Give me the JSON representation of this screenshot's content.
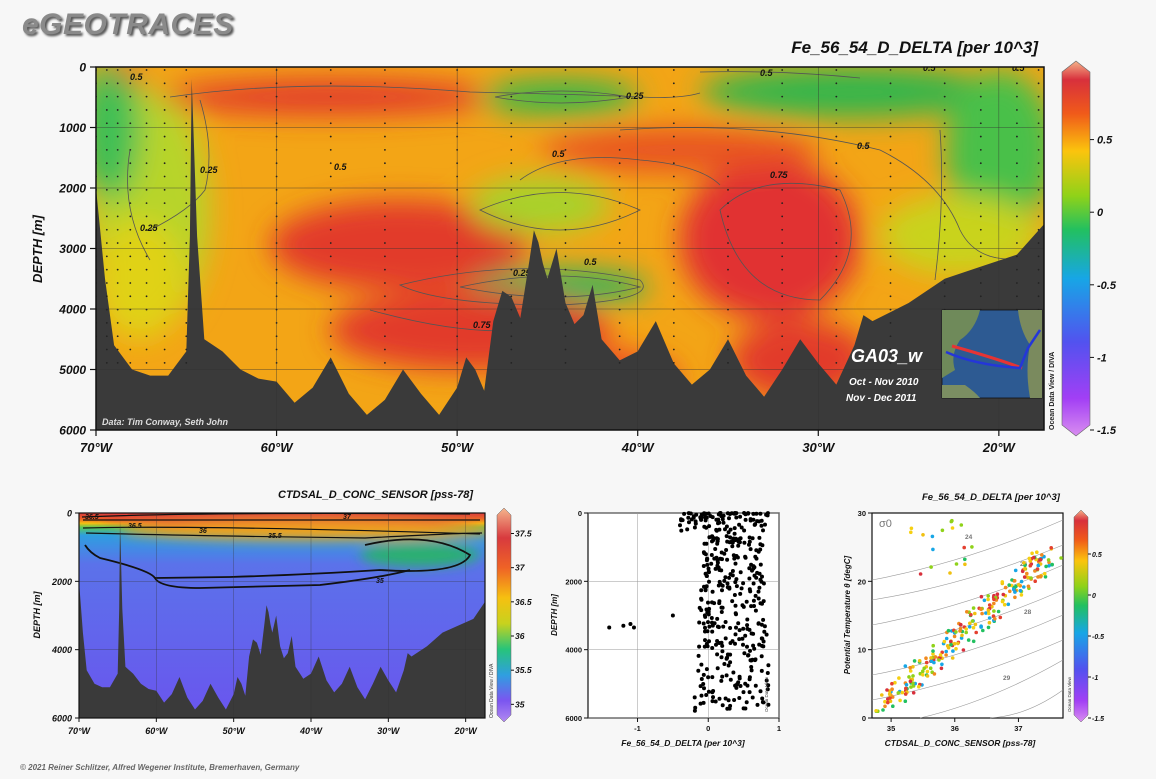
{
  "logo": "eGEOTRACES",
  "footer": "© 2021 Reiner Schlitzer, Alfred Wegener Institute, Bremerhaven, Germany",
  "colors": {
    "background": "#f7f7f7",
    "bathymetry": "#3a3a3a",
    "frame": "#111111"
  },
  "chart_data": [
    {
      "id": "main-section",
      "type": "heatmap",
      "title": "Fe_56_54_D_DELTA [per 10^3]",
      "ylabel": "DEPTH [m]",
      "xlabel": "",
      "x_ticks": [
        "70°W",
        "60°W",
        "50°W",
        "40°W",
        "30°W",
        "20°W"
      ],
      "x_tick_values": [
        -70,
        -60,
        -50,
        -40,
        -30,
        -20
      ],
      "xlim": [
        -70,
        -17.5
      ],
      "y_ticks": [
        "0",
        "1000",
        "2000",
        "3000",
        "4000",
        "5000",
        "6000"
      ],
      "y_tick_values": [
        0,
        1000,
        2000,
        3000,
        4000,
        5000,
        6000
      ],
      "ylim": [
        0,
        6000
      ],
      "colorbar": {
        "ticks": [
          "0.5",
          "0",
          "-0.5",
          "-1",
          "-1.5"
        ],
        "tick_values": [
          0.5,
          0,
          -0.5,
          -1,
          -1.5
        ],
        "range": [
          -1.5,
          1
        ]
      },
      "contour_labels": [
        "0.5",
        "0.25",
        "0.25",
        "0.5",
        "0.25",
        "0.5",
        "0.75",
        "0.5",
        "0.5",
        "0.25",
        "0.75",
        "0.5",
        "0.5"
      ],
      "credit": "Data: Tim Conway, Seth John",
      "cruise": "GA03_w",
      "dates": [
        "Oct - Nov 2010",
        "Nov - Dec 2011"
      ],
      "odv_label": "Ocean Data View / DIVA",
      "bathymetry": [
        [
          -70,
          2000
        ],
        [
          -69.5,
          3500
        ],
        [
          -69,
          4600
        ],
        [
          -68,
          5000
        ],
        [
          -67,
          5100
        ],
        [
          -66,
          5100
        ],
        [
          -65,
          4700
        ],
        [
          -64.8,
          2800
        ],
        [
          -64.7,
          200
        ],
        [
          -64.4,
          2800
        ],
        [
          -64,
          4500
        ],
        [
          -63,
          4700
        ],
        [
          -62,
          5000
        ],
        [
          -61,
          5150
        ],
        [
          -60,
          5200
        ],
        [
          -58,
          5300
        ],
        [
          -56,
          5400
        ],
        [
          -54,
          5500
        ],
        [
          -52,
          5400
        ],
        [
          -50,
          5300
        ],
        [
          -49,
          5000
        ],
        [
          -48,
          4200
        ],
        [
          -47,
          3800
        ],
        [
          -46,
          3200
        ],
        [
          -45.5,
          2900
        ],
        [
          -45,
          3500
        ],
        [
          -44,
          3900
        ],
        [
          -43,
          4100
        ],
        [
          -42,
          4500
        ],
        [
          -40,
          4700
        ],
        [
          -38,
          4900
        ],
        [
          -36,
          5000
        ],
        [
          -34,
          5100
        ],
        [
          -32,
          5000
        ],
        [
          -30,
          4900
        ],
        [
          -28,
          4600
        ],
        [
          -27,
          4200
        ],
        [
          -25,
          3900
        ],
        [
          -23,
          3500
        ],
        [
          -21,
          3300
        ],
        [
          -19,
          3100
        ],
        [
          -17.5,
          2600
        ]
      ],
      "stations_lon": [
        -70,
        -69.4,
        -68.8,
        -68.1,
        -67.2,
        -66.2,
        -65,
        -60,
        -57,
        -54,
        -50,
        -47,
        -44,
        -41,
        -38,
        -35,
        -32,
        -29,
        -26,
        -23,
        -21,
        -19,
        -17.8
      ]
    },
    {
      "id": "salinity-section",
      "type": "heatmap",
      "title": "CTDSAL_D_CONC_SENSOR [pss-78]",
      "ylabel": "DEPTH [m]",
      "x_ticks": [
        "70°W",
        "60°W",
        "50°W",
        "40°W",
        "30°W",
        "20°W"
      ],
      "x_tick_values": [
        -70,
        -60,
        -50,
        -40,
        -30,
        -20
      ],
      "xlim": [
        -70,
        -17.5
      ],
      "y_ticks": [
        "0",
        "2000",
        "4000",
        "6000"
      ],
      "y_tick_values": [
        0,
        2000,
        4000,
        6000
      ],
      "ylim": [
        0,
        6000
      ],
      "colorbar": {
        "ticks": [
          "37.5",
          "37",
          "36.5",
          "36",
          "35.5",
          "35"
        ],
        "tick_values": [
          37.5,
          37,
          36.5,
          36,
          35.5,
          35
        ],
        "range": [
          34.8,
          37.8
        ]
      },
      "contour_labels": [
        "36.5",
        "36.5",
        "36",
        "35.5",
        "37",
        "35"
      ],
      "odv_label": "Ocean Data View / DIVA"
    },
    {
      "id": "depth-scatter",
      "type": "scatter",
      "title": "",
      "xlabel": "Fe_56_54_D_DELTA [per 10^3]",
      "ylabel": "DEPTH [m]",
      "x_ticks": [
        "-1",
        "0",
        "1"
      ],
      "x_tick_values": [
        -1,
        0,
        1
      ],
      "xlim": [
        -1.7,
        1
      ],
      "y_ticks": [
        "0",
        "2000",
        "4000",
        "6000"
      ],
      "y_tick_values": [
        0,
        2000,
        4000,
        6000
      ],
      "ylim": [
        0,
        6000
      ],
      "grid": true,
      "odv_label": "Ocean Data View",
      "outliers": [
        [
          -1.4,
          3350
        ],
        [
          -1.2,
          3300
        ],
        [
          -1.1,
          3250
        ],
        [
          -1.05,
          3350
        ],
        [
          -0.5,
          3000
        ]
      ]
    },
    {
      "id": "ts-scatter",
      "type": "scatter",
      "title": "Fe_56_54_D_DELTA [per 10^3]",
      "xlabel": "CTDSAL_D_CONC_SENSOR [pss-78]",
      "ylabel": "Potential Temperature θ [degC]",
      "x_ticks": [
        "35",
        "36",
        "37"
      ],
      "x_tick_values": [
        35,
        36,
        37
      ],
      "xlim": [
        34.7,
        37.7
      ],
      "y_ticks": [
        "0",
        "10",
        "20",
        "30"
      ],
      "y_tick_values": [
        0,
        10,
        20,
        30
      ],
      "ylim": [
        0,
        30
      ],
      "isopycnal_symbol": "σ0",
      "isopycnal_labels": [
        "24",
        "26",
        "28",
        "29"
      ],
      "colorbar": {
        "ticks": [
          "0.5",
          "0",
          "-0.5",
          "-1",
          "-1.5"
        ],
        "tick_values": [
          0.5,
          0,
          -0.5,
          -1,
          -1.5
        ],
        "range": [
          -1.5,
          1
        ]
      },
      "odv_label": "Ocean Data View"
    }
  ]
}
